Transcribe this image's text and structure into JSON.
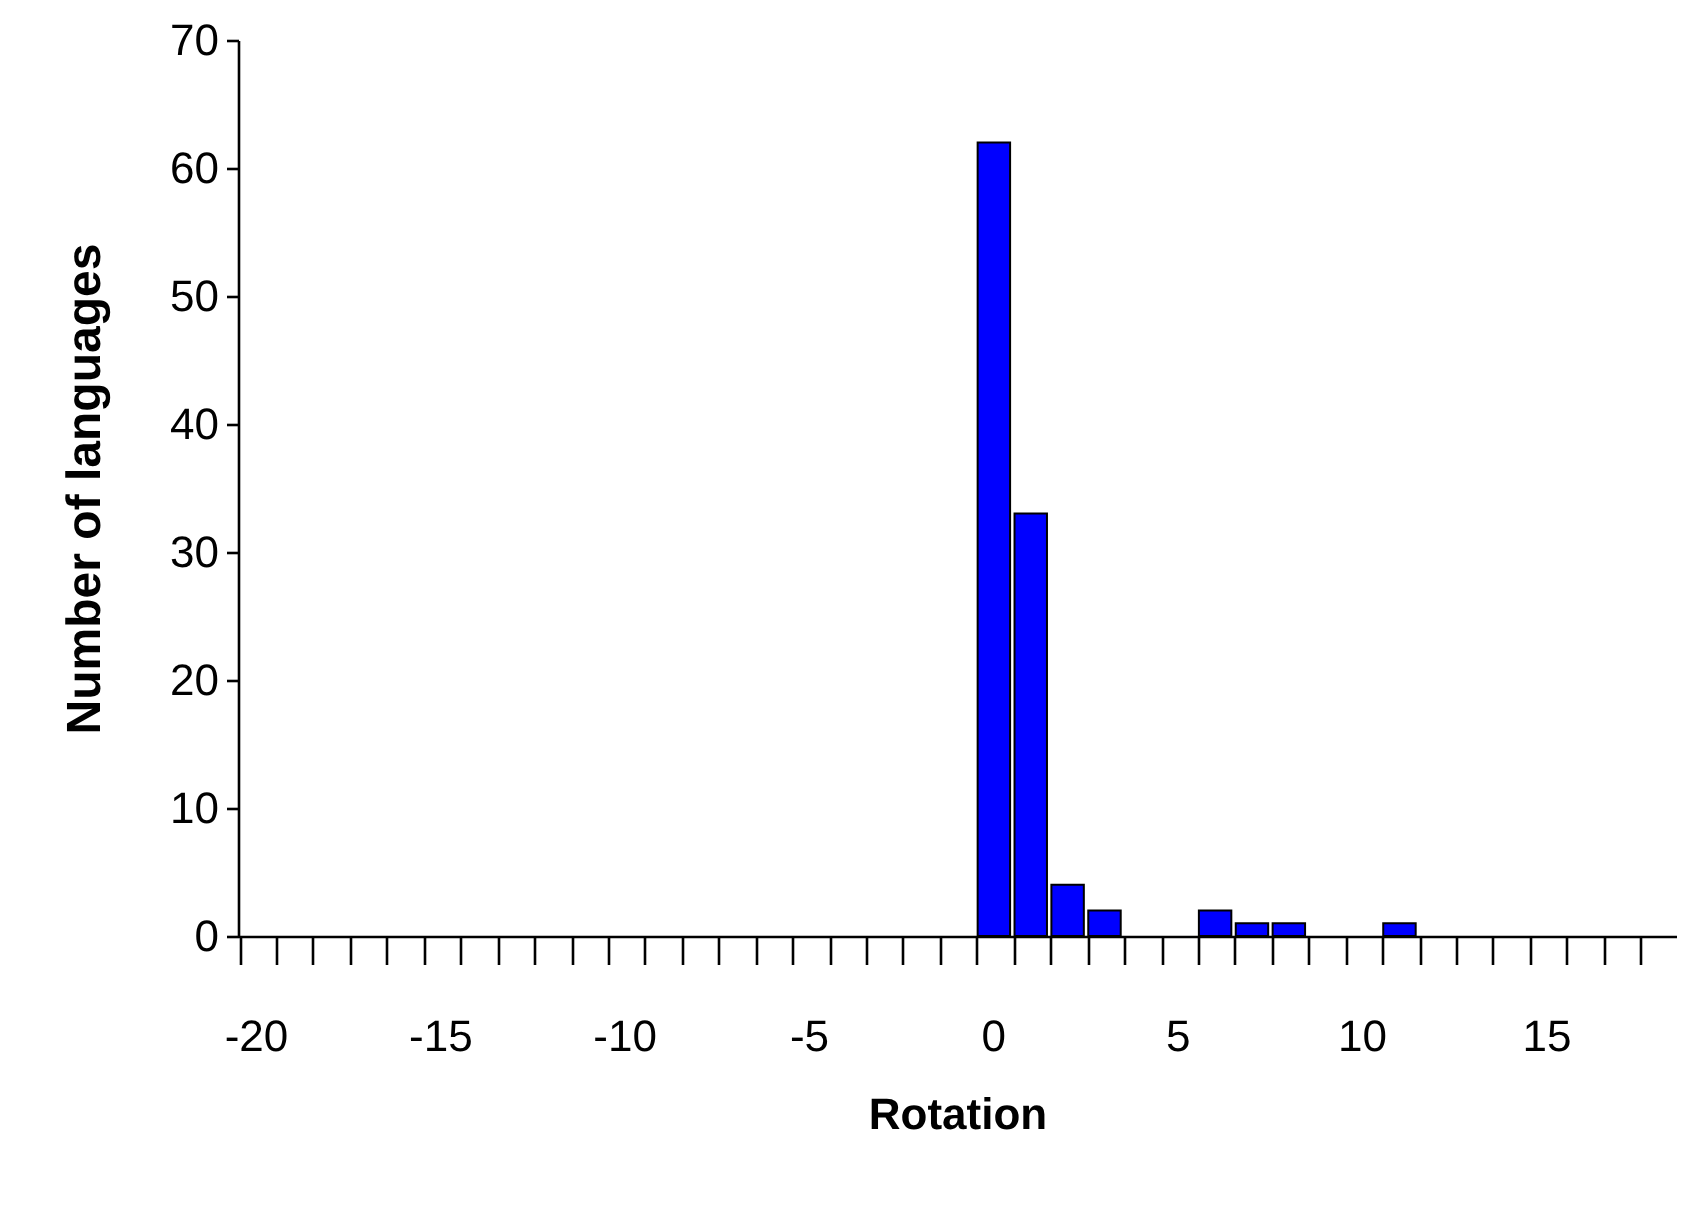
{
  "chart_data": {
    "type": "bar",
    "xlabel": "Rotation",
    "ylabel": "Number of languages",
    "color": "#0000ff",
    "categories": [
      "-20",
      null,
      null,
      null,
      null,
      "-15",
      null,
      null,
      null,
      null,
      "-10",
      null,
      null,
      null,
      null,
      "-5",
      null,
      null,
      null,
      null,
      "0",
      null,
      null,
      null,
      null,
      "5",
      null,
      null,
      null,
      null,
      "10",
      null,
      null,
      null,
      null,
      "15",
      null,
      null,
      null
    ],
    "values": [
      0,
      0,
      0,
      0,
      0,
      0,
      0,
      0,
      0,
      0,
      0,
      0,
      0,
      0,
      0,
      0,
      0,
      0,
      0,
      0,
      62,
      33,
      4,
      2,
      0,
      0,
      2,
      1,
      1,
      0,
      0,
      1,
      0,
      0,
      0,
      0,
      0,
      0,
      0
    ],
    "ylim": [
      0,
      70
    ],
    "yticks": [
      0,
      10,
      20,
      30,
      40,
      50,
      60,
      70
    ]
  }
}
